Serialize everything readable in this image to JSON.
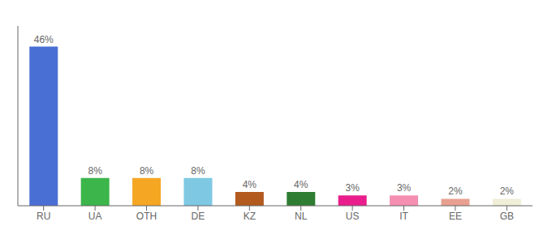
{
  "chart_data": {
    "type": "bar",
    "categories": [
      "RU",
      "UA",
      "OTH",
      "DE",
      "KZ",
      "NL",
      "US",
      "IT",
      "EE",
      "GB"
    ],
    "values": [
      46,
      8,
      8,
      8,
      4,
      4,
      3,
      3,
      2,
      2
    ],
    "value_labels": [
      "46%",
      "8%",
      "8%",
      "8%",
      "4%",
      "4%",
      "3%",
      "3%",
      "2%",
      "2%"
    ],
    "colors": [
      "#4a6fd4",
      "#3cb54a",
      "#f5a623",
      "#7ec8e3",
      "#b35a1f",
      "#2e7d32",
      "#e91e8c",
      "#f48fb1",
      "#e8a090",
      "#f0eed8"
    ],
    "ylim": [
      0,
      52
    ],
    "grid": false,
    "data_labels": true,
    "tick_labels": "x"
  }
}
